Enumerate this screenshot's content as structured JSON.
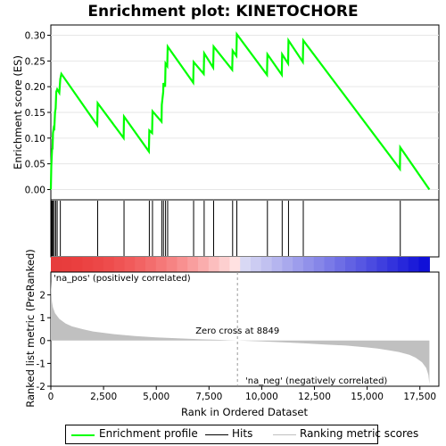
{
  "chart_data": {
    "type": "line",
    "title": "Enrichment plot: KINETOCHORE",
    "top_panel": {
      "ylabel": "Enrichment score (ES)",
      "ylim": [
        -0.02,
        0.32
      ],
      "yticks": [
        0.0,
        0.05,
        0.1,
        0.15,
        0.2,
        0.25,
        0.3
      ],
      "ytick_labels": [
        "0.00",
        "0.05",
        "0.10",
        "0.15",
        "0.20",
        "0.25",
        "0.30"
      ],
      "series": [
        {
          "name": "Enrichment profile",
          "color": "#00ff00",
          "x": [
            0,
            20,
            40,
            60,
            80,
            100,
            130,
            160,
            200,
            230,
            260,
            300,
            400,
            450,
            500,
            2200,
            2220,
            3450,
            3470,
            4650,
            4670,
            4800,
            4820,
            5250,
            5260,
            5330,
            5340,
            5420,
            5440,
            5520,
            5540,
            6750,
            6770,
            7250,
            7270,
            7700,
            7720,
            8600,
            8620,
            8800,
            8820,
            10250,
            10270,
            10950,
            10970,
            11250,
            11270,
            11950,
            11970,
            16550,
            16570,
            17950
          ],
          "y": [
            0.0,
            0.045,
            0.06,
            0.08,
            0.078,
            0.11,
            0.118,
            0.115,
            0.15,
            0.158,
            0.19,
            0.195,
            0.188,
            0.215,
            0.225,
            0.125,
            0.168,
            0.1,
            0.142,
            0.074,
            0.115,
            0.11,
            0.152,
            0.132,
            0.165,
            0.19,
            0.207,
            0.2,
            0.245,
            0.24,
            0.278,
            0.208,
            0.248,
            0.225,
            0.265,
            0.237,
            0.278,
            0.233,
            0.27,
            0.26,
            0.302,
            0.223,
            0.263,
            0.223,
            0.263,
            0.245,
            0.29,
            0.248,
            0.29,
            0.04,
            0.082,
            0.0
          ]
        }
      ]
    },
    "hits": [
      20,
      40,
      80,
      100,
      160,
      230,
      300,
      450,
      2220,
      3470,
      4670,
      4820,
      5260,
      5340,
      5440,
      5540,
      6770,
      7270,
      7720,
      8620,
      8820,
      10270,
      10970,
      11270,
      11970,
      16570
    ],
    "bottom_panel": {
      "ylabel": "Ranked list metric (PreRanked)",
      "xlabel": "Rank in Ordered Dataset",
      "xlim": [
        0,
        18400
      ],
      "ylim": [
        -2,
        3
      ],
      "yticks": [
        -2,
        -1,
        0,
        1,
        2
      ],
      "ytick_labels": [
        "-2",
        "-1",
        "0",
        "1",
        "2"
      ],
      "xticks": [
        0,
        2500,
        5000,
        7500,
        10000,
        12500,
        15000,
        17500
      ],
      "xtick_labels": [
        "0",
        "2,500",
        "5,000",
        "7,500",
        "10,000",
        "12,500",
        "15,000",
        "17,500"
      ],
      "metric_x": [
        0,
        50,
        100,
        200,
        400,
        700,
        1000,
        1500,
        2000,
        3000,
        4000,
        5000,
        6000,
        7000,
        8000,
        8849,
        10000,
        11000,
        12000,
        13000,
        14000,
        15000,
        15500,
        16000,
        16500,
        17000,
        17300,
        17600,
        17800,
        17900,
        17950
      ],
      "metric_y": [
        2.6,
        1.7,
        1.45,
        1.2,
        0.95,
        0.75,
        0.62,
        0.5,
        0.4,
        0.28,
        0.2,
        0.14,
        0.1,
        0.06,
        0.03,
        0.0,
        -0.04,
        -0.08,
        -0.12,
        -0.17,
        -0.22,
        -0.3,
        -0.35,
        -0.42,
        -0.5,
        -0.62,
        -0.75,
        -0.95,
        -1.2,
        -1.5,
        -1.9
      ],
      "zero_cross": 8849,
      "zero_cross_label": "Zero cross at 8849",
      "pos_label": "'na_pos' (positively correlated)",
      "neg_label": "'na_neg' (negatively correlated)",
      "pos_color": "#cc0000",
      "neg_color": "#0000cc"
    },
    "legend": {
      "items": [
        {
          "label": "Enrichment profile",
          "color": "#00ff00"
        },
        {
          "label": "Hits",
          "color": "#000000"
        },
        {
          "label": "Ranking metric scores",
          "color": "#c0c0c0"
        }
      ]
    }
  }
}
